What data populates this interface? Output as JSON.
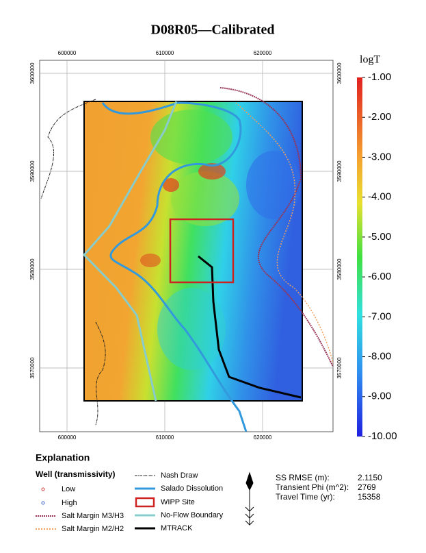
{
  "title": "D08R05—Calibrated",
  "map": {
    "top_ticks": [
      "600000",
      "610000",
      "620000"
    ],
    "bottom_ticks": [
      "600000",
      "610000",
      "620000"
    ],
    "left_ticks": [
      "3600000",
      "3590000",
      "3580000",
      "3570000"
    ],
    "right_ticks": [
      "3600000",
      "3590000",
      "3580000",
      "3570000"
    ]
  },
  "colorbar": {
    "title": "logT",
    "labels": [
      "-1.00",
      "-2.00",
      "-3.00",
      "-4.00",
      "-5.00",
      "-6.00",
      "-7.00",
      "-8.00",
      "-9.00",
      "-10.00"
    ]
  },
  "legend": {
    "title": "Explanation",
    "subtitle": "Well (transmissivity)",
    "items": [
      "Low",
      "High",
      "Salt Margin M3/H3",
      "Salt Margin M2/H2",
      "Nash Draw",
      "Salado Dissolution",
      "WIPP Site",
      "No-Flow Boundary",
      "MTRACK"
    ]
  },
  "stats": {
    "labels": [
      "SS RMSE (m):",
      "Transient Phi (m^2):",
      "Travel Time (yr):"
    ],
    "values": [
      "2.1150",
      "2769",
      "15358"
    ]
  }
}
